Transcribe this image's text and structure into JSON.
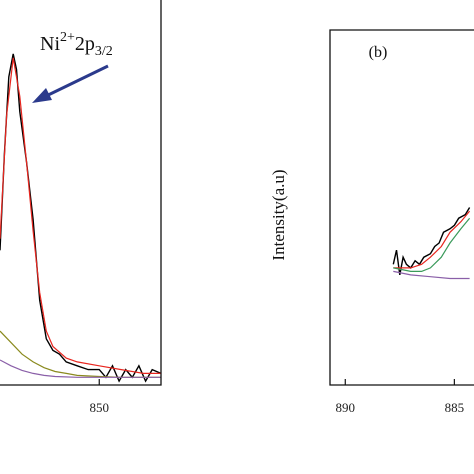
{
  "chart_data": [
    {
      "type": "line",
      "xlim": [
        854.5,
        847.2
      ],
      "ylim": [
        0,
        100
      ],
      "xticks": [
        850
      ],
      "annotation": {
        "base": "Ni",
        "sup": "2+",
        "main": "2p",
        "sub": "3/2"
      },
      "series": [
        {
          "color": "#000000",
          "x": [
            854.5,
            854.3,
            854.1,
            853.9,
            853.75,
            853.6,
            853.3,
            853.0,
            852.7,
            852.4,
            852.1,
            851.8,
            851.5,
            851.0,
            850.5,
            850.0,
            849.7,
            849.4,
            849.1,
            848.8,
            848.5,
            848.2,
            847.9,
            847.6,
            847.2
          ],
          "values": [
            35,
            60,
            80,
            86,
            82,
            71,
            58,
            43,
            22,
            12,
            9,
            8,
            6,
            5,
            4,
            4,
            2,
            5,
            1,
            4,
            2,
            5,
            1,
            4,
            3
          ]
        },
        {
          "color": "#e8261f",
          "x": [
            854.5,
            854.2,
            853.9,
            853.6,
            853.3,
            853.0,
            852.7,
            852.4,
            852.1,
            851.5,
            851.0,
            850.0,
            849.0,
            848.0,
            847.2
          ],
          "values": [
            38,
            70,
            85,
            75,
            58,
            40,
            24,
            14,
            10,
            7,
            6,
            5,
            4,
            3,
            3
          ]
        },
        {
          "color": "#8a8a1e",
          "x": [
            854.5,
            854.0,
            853.5,
            853.0,
            852.5,
            852.0,
            851.5,
            851.0,
            850.0,
            849.0,
            848.0,
            847.2
          ],
          "values": [
            14,
            11,
            8,
            6,
            4.5,
            3.5,
            3,
            2.5,
            2.2,
            2,
            2,
            2
          ]
        },
        {
          "color": "#8a5fa8",
          "x": [
            854.5,
            854.0,
            853.5,
            853.0,
            852.5,
            852.0,
            851.0,
            850.0,
            849.0,
            848.0,
            847.2
          ],
          "values": [
            6.5,
            5,
            3.8,
            3,
            2.5,
            2.2,
            2,
            2,
            2,
            2,
            2
          ]
        }
      ]
    },
    {
      "type": "line",
      "xlim": [
        890.7,
        884.1
      ],
      "ylim": [
        0,
        100
      ],
      "xticks": [
        890,
        885
      ],
      "label": "(b)",
      "ylabel": "Intensity(a.u)",
      "series": [
        {
          "color": "#000000",
          "x": [
            887.8,
            887.65,
            887.5,
            887.35,
            887.2,
            887.0,
            886.8,
            886.6,
            886.4,
            886.1,
            885.9,
            885.7,
            885.5,
            885.2,
            885.0,
            884.8,
            884.5,
            884.3
          ],
          "values": [
            34,
            38,
            31,
            36,
            34,
            33,
            35,
            34,
            36,
            37,
            39,
            40,
            43,
            44,
            45,
            47,
            48,
            50
          ]
        },
        {
          "color": "#e8261f",
          "x": [
            887.8,
            887.0,
            886.5,
            886.1,
            885.6,
            885.2,
            884.7,
            884.3
          ],
          "values": [
            33,
            33,
            34,
            36,
            39,
            43,
            46,
            49
          ]
        },
        {
          "color": "#3a9a5a",
          "x": [
            887.8,
            887.0,
            886.5,
            886.1,
            885.6,
            885.2,
            884.7,
            884.3
          ],
          "values": [
            33,
            32,
            32,
            33,
            36,
            40,
            44,
            47
          ]
        },
        {
          "color": "#8a5fa8",
          "x": [
            887.8,
            887.0,
            886.1,
            885.2,
            884.3
          ],
          "values": [
            32,
            31,
            30.5,
            30,
            30
          ]
        }
      ]
    }
  ]
}
